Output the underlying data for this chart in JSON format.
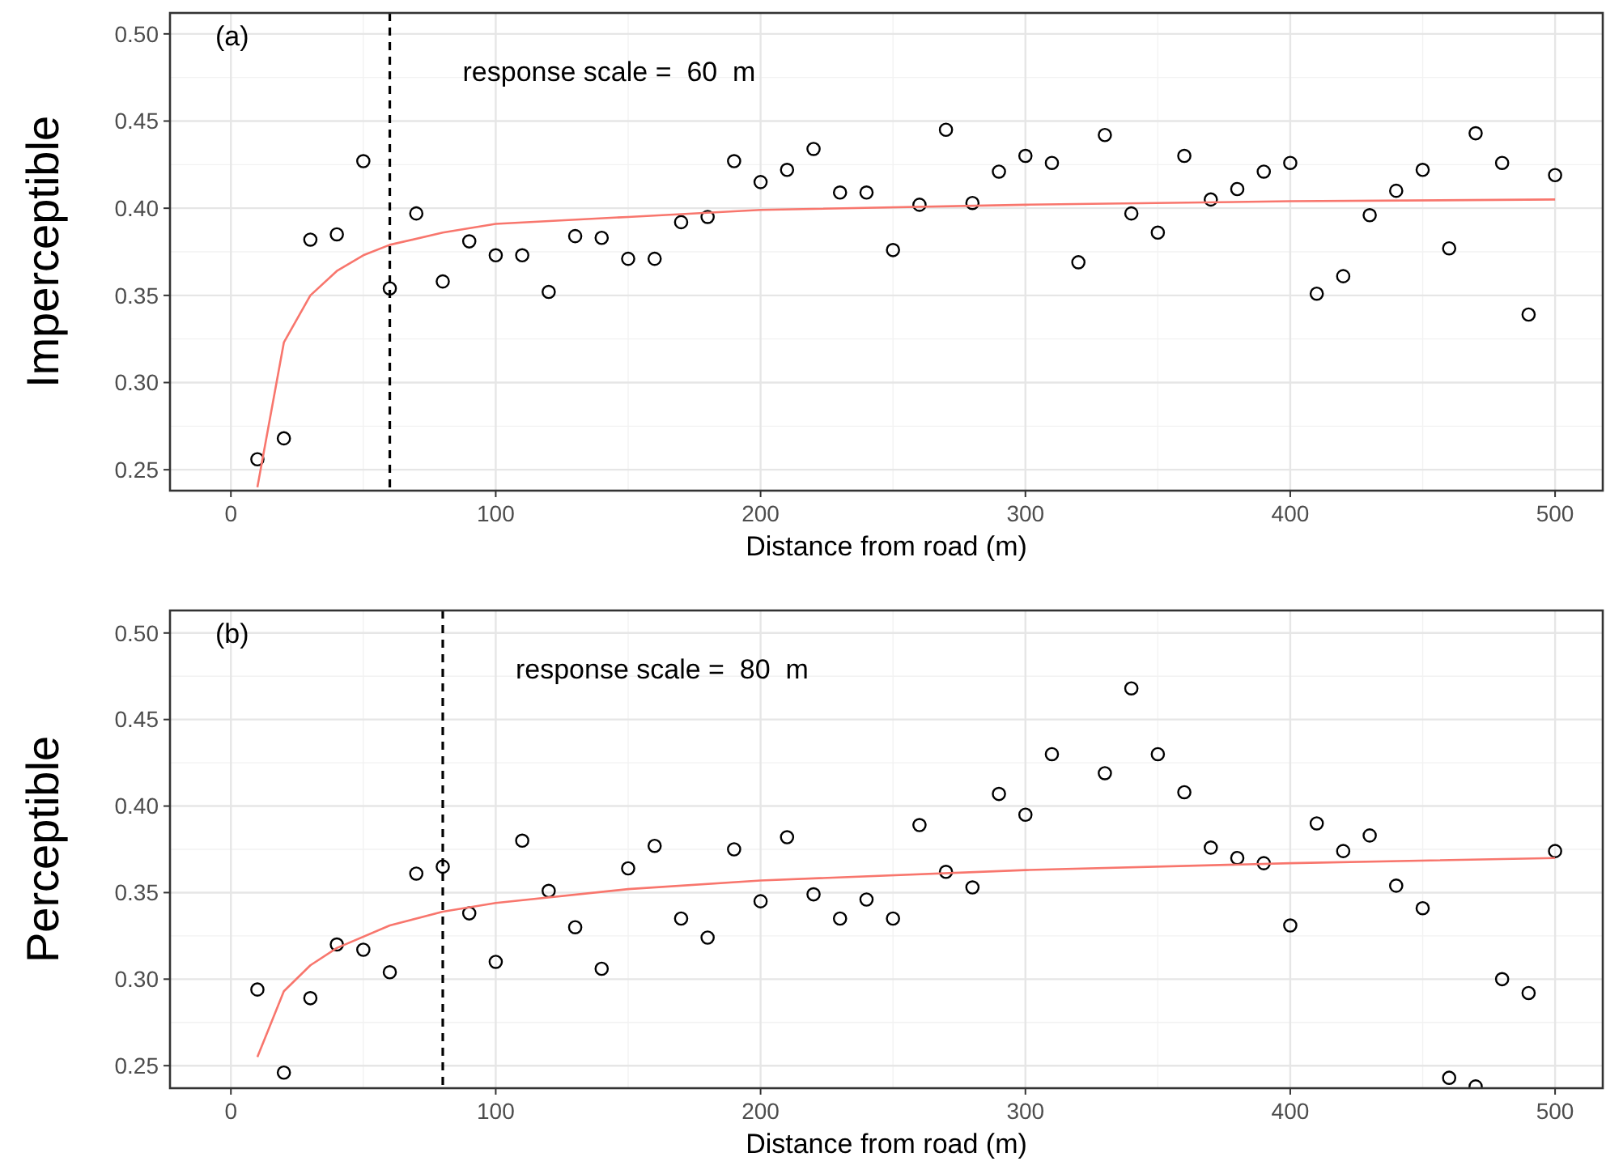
{
  "chart_data": [
    {
      "type": "scatter",
      "title": "(a)",
      "xlabel": "Distance from road (m)",
      "ylabel": "Imperceptible",
      "annotations": [
        "response scale =  60  m"
      ],
      "xlim": [
        -23,
        518
      ],
      "ylim": [
        0.238,
        0.512
      ],
      "xticks": [
        0,
        100,
        200,
        300,
        400,
        500
      ],
      "yticks": [
        {
          "value": 0.25,
          "label": "0.25"
        },
        {
          "value": 0.3,
          "label": "0.30"
        },
        {
          "value": 0.35,
          "label": "0.35"
        },
        {
          "value": 0.4,
          "label": "0.40"
        },
        {
          "value": 0.45,
          "label": "0.45"
        },
        {
          "value": 0.5,
          "label": "0.50"
        }
      ],
      "grid": true,
      "ref_lines": [
        {
          "axis": "x",
          "value": 60,
          "color": "#000000",
          "line_style": "dashed"
        }
      ],
      "series": [
        {
          "marker": "circle",
          "color": "#000000",
          "x": [
            10,
            20,
            30,
            40,
            50,
            60,
            70,
            80,
            90,
            100,
            110,
            120,
            130,
            140,
            150,
            160,
            170,
            180,
            190,
            200,
            210,
            220,
            230,
            240,
            250,
            260,
            270,
            280,
            290,
            300,
            310,
            320,
            330,
            340,
            350,
            360,
            370,
            380,
            390,
            400,
            410,
            420,
            430,
            440,
            450,
            460,
            470,
            480,
            490,
            500
          ],
          "values": [
            0.256,
            0.268,
            0.382,
            0.385,
            0.427,
            0.354,
            0.397,
            0.358,
            0.381,
            0.373,
            0.373,
            0.352,
            0.384,
            0.383,
            0.371,
            0.371,
            0.392,
            0.395,
            0.427,
            0.415,
            0.422,
            0.434,
            0.409,
            0.409,
            0.376,
            0.402,
            0.445,
            0.403,
            0.421,
            0.43,
            0.426,
            0.369,
            0.442,
            0.397,
            0.386,
            0.43,
            0.405,
            0.411,
            0.421,
            0.426,
            0.351,
            0.361,
            0.396,
            0.41,
            0.422,
            0.377,
            0.443,
            0.426,
            0.339,
            0.419
          ]
        },
        {
          "type": "line",
          "marker": "none",
          "color": "#f8766d",
          "x": [
            10,
            20,
            30,
            40,
            50,
            60,
            80,
            100,
            150,
            200,
            300,
            400,
            500
          ],
          "values": [
            0.24,
            0.323,
            0.35,
            0.364,
            0.373,
            0.379,
            0.386,
            0.391,
            0.395,
            0.399,
            0.402,
            0.404,
            0.405
          ]
        }
      ]
    },
    {
      "type": "scatter",
      "title": "(b)",
      "xlabel": "Distance from road (m)",
      "ylabel": "Perceptible",
      "annotations": [
        "response scale =  80  m"
      ],
      "xlim": [
        -23,
        518
      ],
      "ylim": [
        0.237,
        0.513
      ],
      "xticks": [
        0,
        100,
        200,
        300,
        400,
        500
      ],
      "yticks": [
        {
          "value": 0.25,
          "label": "0.25"
        },
        {
          "value": 0.3,
          "label": "0.30"
        },
        {
          "value": 0.35,
          "label": "0.35"
        },
        {
          "value": 0.4,
          "label": "0.40"
        },
        {
          "value": 0.45,
          "label": "0.45"
        },
        {
          "value": 0.5,
          "label": "0.50"
        }
      ],
      "grid": true,
      "ref_lines": [
        {
          "axis": "x",
          "value": 80,
          "color": "#000000",
          "line_style": "dashed"
        }
      ],
      "series": [
        {
          "marker": "circle",
          "color": "#000000",
          "x": [
            10,
            20,
            30,
            40,
            50,
            60,
            70,
            80,
            90,
            100,
            110,
            120,
            130,
            140,
            150,
            160,
            170,
            180,
            190,
            200,
            210,
            220,
            230,
            240,
            250,
            260,
            270,
            280,
            290,
            300,
            310,
            330,
            340,
            350,
            360,
            370,
            380,
            390,
            400,
            410,
            420,
            430,
            440,
            450,
            460,
            470,
            480,
            490,
            500
          ],
          "values": [
            0.294,
            0.246,
            0.289,
            0.32,
            0.317,
            0.304,
            0.361,
            0.365,
            0.338,
            0.31,
            0.38,
            0.351,
            0.33,
            0.306,
            0.364,
            0.377,
            0.335,
            0.324,
            0.375,
            0.345,
            0.382,
            0.349,
            0.335,
            0.346,
            0.335,
            0.389,
            0.362,
            0.353,
            0.407,
            0.395,
            0.43,
            0.419,
            0.468,
            0.43,
            0.408,
            0.376,
            0.37,
            0.367,
            0.331,
            0.39,
            0.374,
            0.383,
            0.354,
            0.341,
            0.243,
            0.238,
            0.3,
            0.292,
            0.374
          ]
        },
        {
          "type": "line",
          "marker": "none",
          "color": "#f8766d",
          "x": [
            10,
            20,
            30,
            40,
            60,
            80,
            100,
            150,
            200,
            300,
            400,
            500
          ],
          "values": [
            0.255,
            0.293,
            0.308,
            0.318,
            0.331,
            0.339,
            0.344,
            0.352,
            0.357,
            0.363,
            0.367,
            0.37
          ]
        }
      ]
    }
  ]
}
